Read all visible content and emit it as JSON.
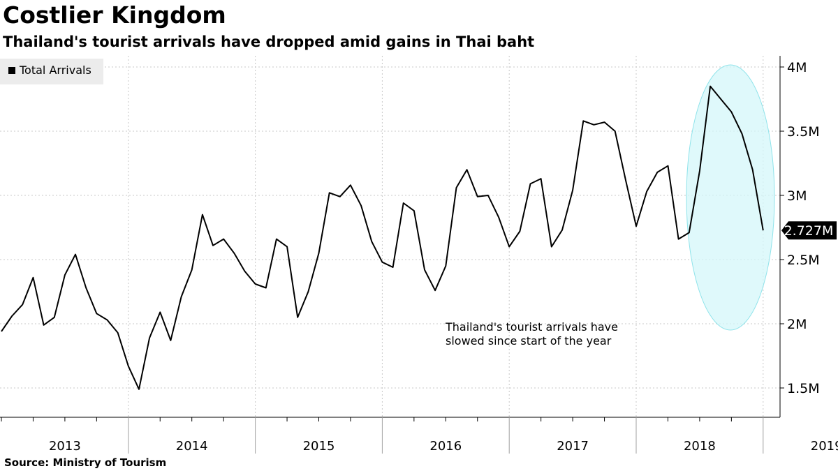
{
  "header": {
    "title": "Costlier Kingdom",
    "subtitle": "Thailand's tourist arrivals have dropped amid gains in Thai baht"
  },
  "footer": {
    "source": "Source: Ministry of Tourism"
  },
  "legend": {
    "label": "Total Arrivals",
    "swatch_color": "#000000"
  },
  "annotation": {
    "line1": "Thailand's tourist arrivals have",
    "line2": "slowed since start of the year",
    "highlight_color": "#d4f7f9"
  },
  "last_value_label": "2.727M",
  "chart_data": {
    "type": "line",
    "title": "Costlier Kingdom",
    "subtitle": "Thailand's tourist arrivals have dropped amid gains in Thai baht",
    "xlabel": "",
    "ylabel": "",
    "x_start": "2013-01",
    "x_frequency": "monthly",
    "x_tick_labels": [
      "2013",
      "2014",
      "2015",
      "2016",
      "2017",
      "2018",
      "2019"
    ],
    "ylim": [
      1.3,
      4.1
    ],
    "y_ticks": [
      1.5,
      2,
      2.5,
      3,
      3.5,
      4
    ],
    "y_tick_labels": [
      "1.5M",
      "2M",
      "2.5M",
      "3M",
      "3.5M",
      "4M"
    ],
    "y_unit": "M",
    "grid": true,
    "legend_position": "top-left",
    "series": [
      {
        "name": "Total Arrivals",
        "color": "#000000",
        "values": [
          1.94,
          2.06,
          2.15,
          2.36,
          1.99,
          2.05,
          2.38,
          2.54,
          2.28,
          2.08,
          2.03,
          1.93,
          1.67,
          1.49,
          1.89,
          2.09,
          1.87,
          2.21,
          2.42,
          2.85,
          2.61,
          2.66,
          2.55,
          2.41,
          2.31,
          2.28,
          2.66,
          2.6,
          2.05,
          2.25,
          2.55,
          3.02,
          2.99,
          3.08,
          2.92,
          2.64,
          2.48,
          2.44,
          2.94,
          2.88,
          2.42,
          2.26,
          2.45,
          3.06,
          3.2,
          2.99,
          3.0,
          2.83,
          2.6,
          2.72,
          3.09,
          3.13,
          2.6,
          2.73,
          3.04,
          3.58,
          3.55,
          3.57,
          3.5,
          3.12,
          2.76,
          3.03,
          3.18,
          3.23,
          2.66,
          2.71,
          3.19,
          3.85,
          3.75,
          3.65,
          3.48,
          3.2,
          2.727
        ]
      }
    ]
  }
}
